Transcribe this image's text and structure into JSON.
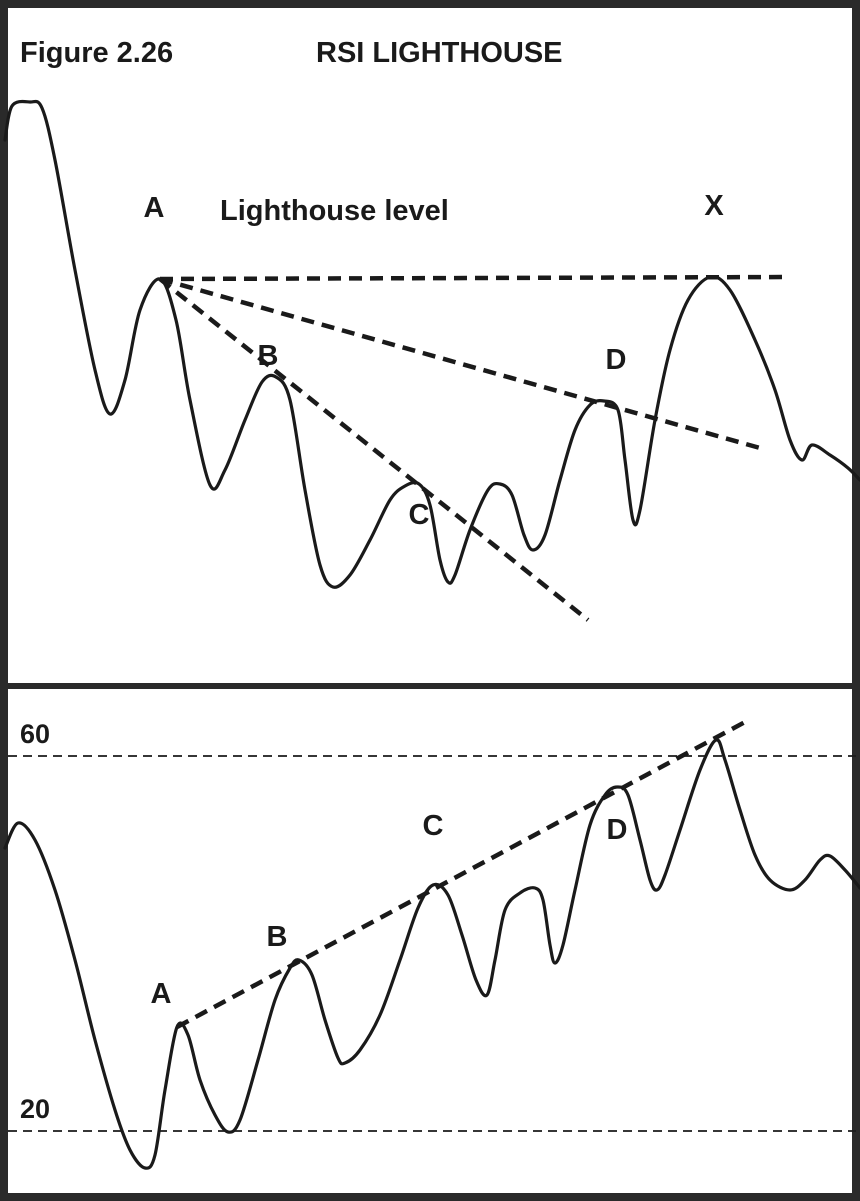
{
  "header": {
    "figure_label": "Figure 2.26",
    "title": "RSI LIGHTHOUSE"
  },
  "chart_data": [
    {
      "type": "line",
      "panel": "price",
      "title": "RSI LIGHTHOUSE",
      "annotation_text": "Lighthouse level",
      "points": [
        {
          "label": "A",
          "x": 160,
          "y": 279
        },
        {
          "label": "B",
          "x": 276,
          "y": 377
        },
        {
          "label": "C",
          "x": 419,
          "y": 484
        },
        {
          "label": "D",
          "x": 604,
          "y": 401
        },
        {
          "label": "X",
          "x": 710,
          "y": 277
        }
      ],
      "trendlines": [
        {
          "name": "lighthouse-level",
          "from": {
            "x": 160,
            "y": 279
          },
          "to": {
            "x": 790,
            "y": 277
          }
        },
        {
          "name": "trend-A-D",
          "from": {
            "x": 160,
            "y": 279
          },
          "to": {
            "x": 760,
            "y": 448
          }
        },
        {
          "name": "trend-A-C",
          "from": {
            "x": 160,
            "y": 279
          },
          "to": {
            "x": 588,
            "y": 620
          }
        }
      ],
      "series": [
        {
          "values": [
            [
              5,
              140
            ],
            [
              12,
              106
            ],
            [
              30,
              102
            ],
            [
              42,
              108
            ],
            [
              55,
              160
            ],
            [
              75,
              270
            ],
            [
              95,
              370
            ],
            [
              110,
              414
            ],
            [
              125,
              380
            ],
            [
              140,
              310
            ],
            [
              160,
              279
            ],
            [
              176,
              320
            ],
            [
              190,
              400
            ],
            [
              210,
              485
            ],
            [
              225,
              470
            ],
            [
              245,
              420
            ],
            [
              262,
              382
            ],
            [
              276,
              377
            ],
            [
              290,
              400
            ],
            [
              305,
              490
            ],
            [
              320,
              565
            ],
            [
              333,
              587
            ],
            [
              350,
              575
            ],
            [
              370,
              540
            ],
            [
              390,
              500
            ],
            [
              405,
              486
            ],
            [
              419,
              484
            ],
            [
              430,
              505
            ],
            [
              440,
              560
            ],
            [
              448,
              582
            ],
            [
              455,
              575
            ],
            [
              470,
              530
            ],
            [
              488,
              490
            ],
            [
              500,
              484
            ],
            [
              512,
              495
            ],
            [
              524,
              535
            ],
            [
              533,
              550
            ],
            [
              545,
              535
            ],
            [
              560,
              480
            ],
            [
              575,
              430
            ],
            [
              590,
              405
            ],
            [
              604,
              401
            ],
            [
              618,
              410
            ],
            [
              625,
              460
            ],
            [
              633,
              520
            ],
            [
              640,
              510
            ],
            [
              655,
              420
            ],
            [
              670,
              350
            ],
            [
              688,
              300
            ],
            [
              710,
              277
            ],
            [
              730,
              290
            ],
            [
              755,
              340
            ],
            [
              775,
              390
            ],
            [
              790,
              440
            ],
            [
              802,
              460
            ],
            [
              812,
              445
            ],
            [
              830,
              455
            ],
            [
              848,
              468
            ],
            [
              860,
              480
            ]
          ]
        }
      ]
    },
    {
      "type": "line",
      "panel": "rsi",
      "ytick_labels": [
        "60",
        "20"
      ],
      "reference_lines": [
        {
          "label": "60",
          "y": 756
        },
        {
          "label": "20",
          "y": 1131
        }
      ],
      "points": [
        {
          "label": "A",
          "x": 177,
          "y": 1027
        },
        {
          "label": "B",
          "x": 299,
          "y": 960
        },
        {
          "label": "C",
          "x": 433,
          "y": 885
        },
        {
          "label": "D",
          "x": 617,
          "y": 787
        }
      ],
      "trendlines": [
        {
          "name": "rsi-trend",
          "from": {
            "x": 177,
            "y": 1027
          },
          "to": {
            "x": 745,
            "y": 722
          }
        }
      ],
      "series": [
        {
          "values": [
            [
              5,
              848
            ],
            [
              18,
              823
            ],
            [
              35,
              840
            ],
            [
              55,
              890
            ],
            [
              75,
              960
            ],
            [
              95,
              1040
            ],
            [
              115,
              1110
            ],
            [
              130,
              1150
            ],
            [
              145,
              1168
            ],
            [
              155,
              1155
            ],
            [
              165,
              1090
            ],
            [
              177,
              1027
            ],
            [
              188,
              1035
            ],
            [
              200,
              1080
            ],
            [
              215,
              1115
            ],
            [
              228,
              1132
            ],
            [
              240,
              1120
            ],
            [
              258,
              1060
            ],
            [
              275,
              1000
            ],
            [
              290,
              968
            ],
            [
              299,
              960
            ],
            [
              312,
              975
            ],
            [
              325,
              1020
            ],
            [
              338,
              1058
            ],
            [
              345,
              1063
            ],
            [
              360,
              1050
            ],
            [
              380,
              1015
            ],
            [
              400,
              960
            ],
            [
              418,
              908
            ],
            [
              433,
              885
            ],
            [
              448,
              895
            ],
            [
              462,
              935
            ],
            [
              476,
              980
            ],
            [
              487,
              995
            ],
            [
              495,
              960
            ],
            [
              505,
              910
            ],
            [
              520,
              893
            ],
            [
              535,
              888
            ],
            [
              543,
              900
            ],
            [
              550,
              945
            ],
            [
              555,
              963
            ],
            [
              563,
              945
            ],
            [
              575,
              890
            ],
            [
              590,
              825
            ],
            [
              605,
              795
            ],
            [
              617,
              787
            ],
            [
              628,
              795
            ],
            [
              640,
              840
            ],
            [
              650,
              880
            ],
            [
              657,
              890
            ],
            [
              665,
              875
            ],
            [
              680,
              830
            ],
            [
              700,
              770
            ],
            [
              716,
              740
            ],
            [
              725,
              760
            ],
            [
              740,
              810
            ],
            [
              755,
              855
            ],
            [
              770,
              880
            ],
            [
              790,
              890
            ],
            [
              805,
              880
            ],
            [
              820,
              860
            ],
            [
              830,
              856
            ],
            [
              845,
              870
            ],
            [
              860,
              888
            ]
          ]
        }
      ]
    }
  ]
}
